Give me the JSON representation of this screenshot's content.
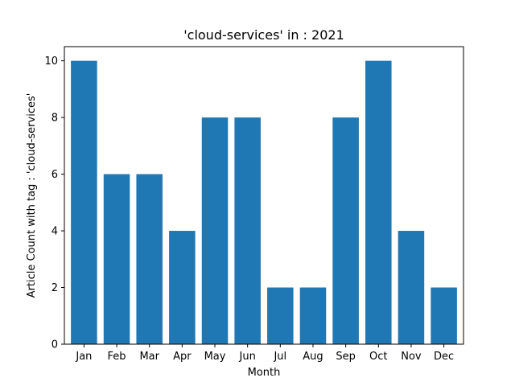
{
  "chart_data": {
    "type": "bar",
    "title": "'cloud-services' in : 2021",
    "xlabel": "Month",
    "ylabel": "Article Count with tag : 'cloud-services'",
    "categories": [
      "Jan",
      "Feb",
      "Mar",
      "Apr",
      "May",
      "Jun",
      "Jul",
      "Aug",
      "Sep",
      "Oct",
      "Nov",
      "Dec"
    ],
    "values": [
      10,
      6,
      6,
      4,
      8,
      8,
      2,
      2,
      8,
      10,
      4,
      2
    ],
    "ylim": [
      0,
      10.5
    ],
    "yticks": [
      0,
      2,
      4,
      6,
      8,
      10
    ],
    "bar_color": "#1f77b4",
    "grid": false,
    "legend": "none"
  }
}
